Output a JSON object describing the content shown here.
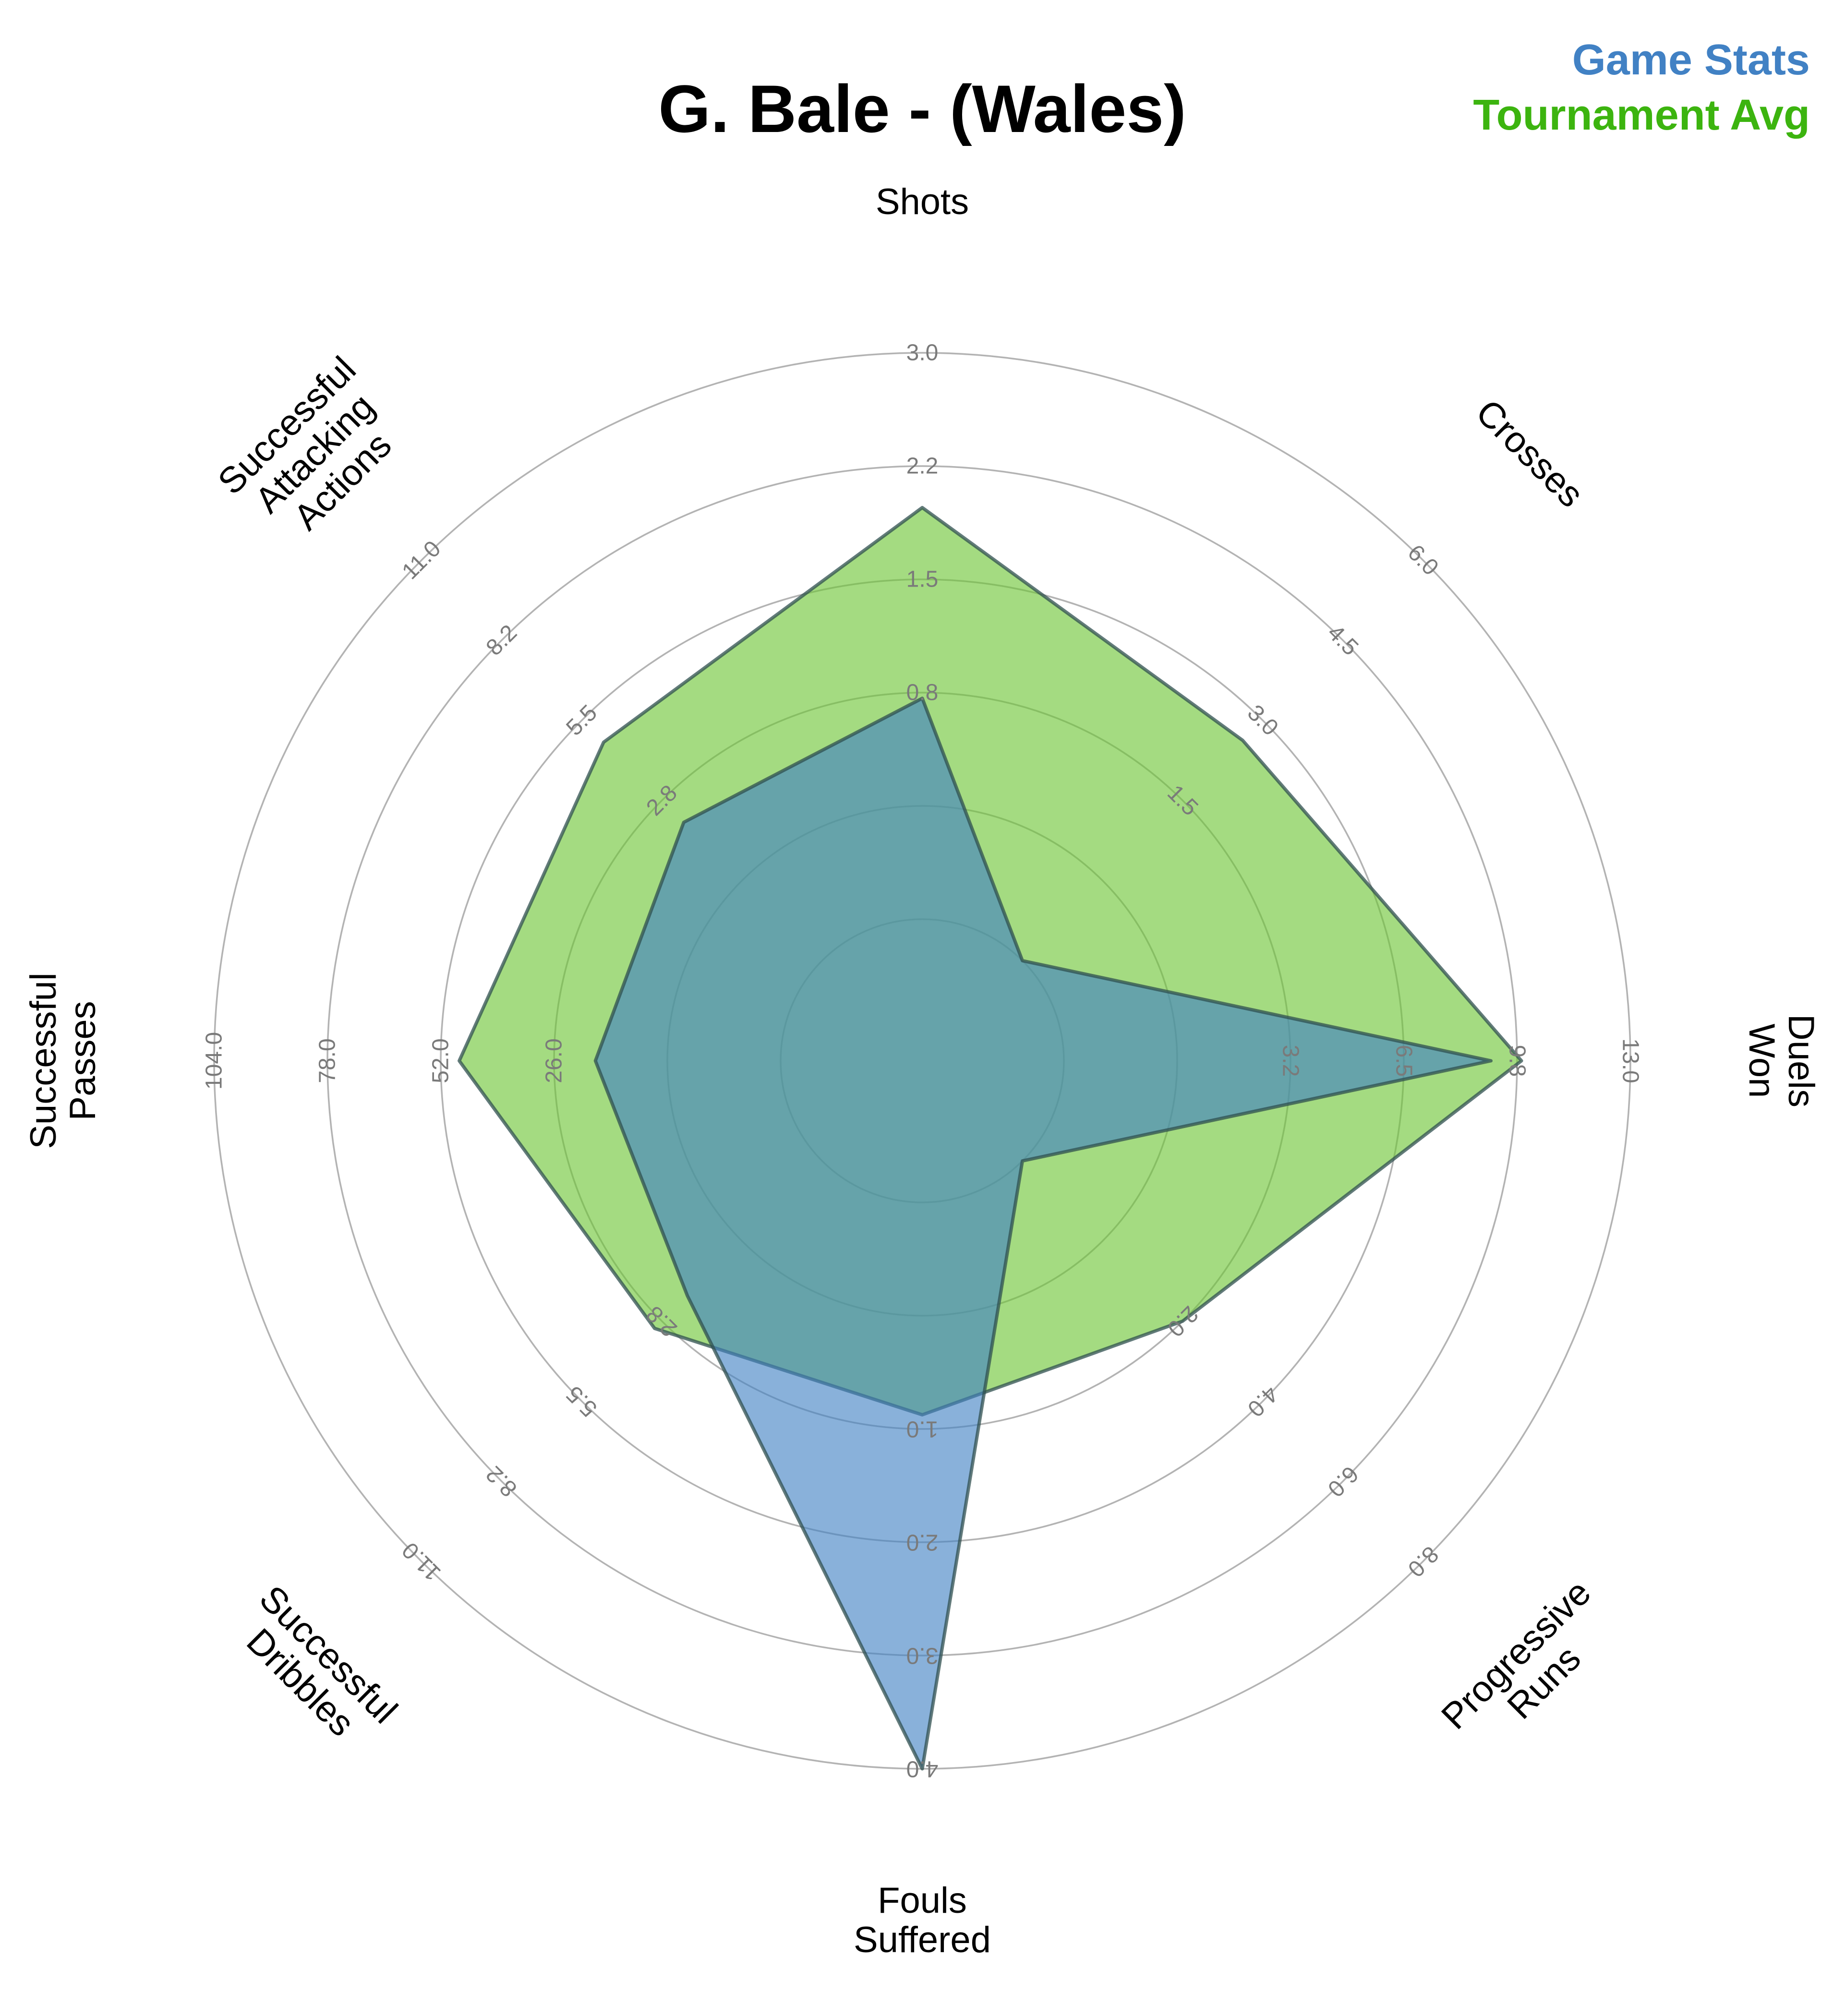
{
  "chart_data": {
    "type": "radar",
    "title": "G. Bale - (Wales)",
    "legend": {
      "position": "top-right",
      "entries": [
        {
          "label": "Game Stats",
          "color": "#4181c4"
        },
        {
          "label": "Tournament Avg",
          "color": "#3cb40f"
        }
      ]
    },
    "grid": true,
    "axes": [
      {
        "label": "Shots",
        "range": [
          0,
          3.0
        ],
        "ticks": [
          "0.8",
          "1.5",
          "2.2",
          "3.0"
        ]
      },
      {
        "label": "Crosses",
        "range": [
          0,
          6.0
        ],
        "ticks": [
          "1.5",
          "3.0",
          "4.5",
          "6.0"
        ]
      },
      {
        "label": "Duels Won",
        "range": [
          0,
          13.0
        ],
        "ticks": [
          "3.2",
          "6.5",
          "9.8",
          "13.0"
        ]
      },
      {
        "label": "Progressive Runs",
        "range": [
          0,
          8.0
        ],
        "ticks": [
          "2.0",
          "4.0",
          "6.0",
          "8.0"
        ]
      },
      {
        "label": "Fouls Suffered",
        "range": [
          0,
          4.0
        ],
        "ticks": [
          "1.0",
          "2.0",
          "3.0",
          "4.0"
        ]
      },
      {
        "label": "Successful Dribbles",
        "range": [
          0,
          11.0
        ],
        "ticks": [
          "2.8",
          "5.5",
          "8.2",
          "11.0"
        ]
      },
      {
        "label": "Successful Passes",
        "range": [
          0,
          104.0
        ],
        "ticks": [
          "26.0",
          "52.0",
          "78.0",
          "104.0"
        ]
      },
      {
        "label": "Successful Attacking Actions",
        "range": [
          0,
          11.0
        ],
        "ticks": [
          "2.8",
          "5.5",
          "8.2",
          "11.0"
        ]
      }
    ],
    "series": [
      {
        "name": "Tournament Avg",
        "color": "#3cb40f",
        "values": [
          2.18,
          3.3,
          10.5,
          3.2,
          1.5,
          4.6,
          59.0,
          6.0
        ]
      },
      {
        "name": "Game Stats",
        "color": "#4181c4",
        "values": [
          1.17,
          0.0,
          9.8,
          0.0,
          4.0,
          3.7,
          34.0,
          3.8
        ]
      }
    ]
  }
}
